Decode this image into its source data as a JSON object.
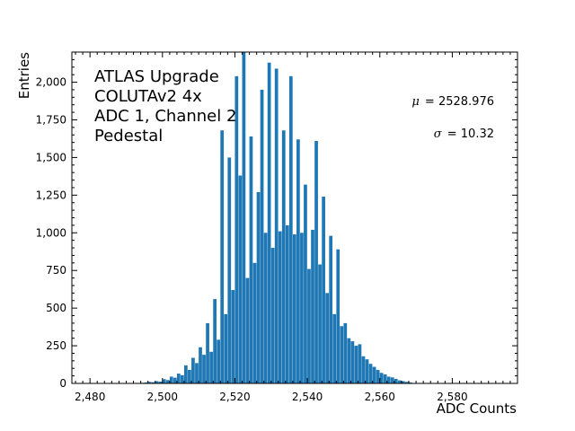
{
  "chart_data": {
    "type": "bar",
    "xlabel": "ADC Counts",
    "ylabel": "Entries",
    "xlim": [
      2475,
      2598
    ],
    "ylim": [
      0,
      2200
    ],
    "x_ticks": [
      2480,
      2500,
      2520,
      2540,
      2560,
      2580
    ],
    "x_tick_labels": [
      "2,480",
      "2,500",
      "2,520",
      "2,540",
      "2,560",
      "2,580"
    ],
    "y_ticks": [
      0,
      250,
      500,
      750,
      1000,
      1250,
      1500,
      1750,
      2000
    ],
    "y_tick_labels": [
      "0",
      "250",
      "500",
      "750",
      "1,000",
      "1,250",
      "1,500",
      "1,750",
      "2,000"
    ],
    "bar_color": "#1f77b4",
    "bins": [
      2490,
      2491,
      2492,
      2493,
      2494,
      2495,
      2496,
      2497,
      2498,
      2499,
      2500,
      2501,
      2502,
      2503,
      2504,
      2505,
      2506,
      2507,
      2508,
      2509,
      2510,
      2511,
      2512,
      2513,
      2514,
      2515,
      2516,
      2517,
      2518,
      2519,
      2520,
      2521,
      2522,
      2523,
      2524,
      2525,
      2526,
      2527,
      2528,
      2529,
      2530,
      2531,
      2532,
      2533,
      2534,
      2535,
      2536,
      2537,
      2538,
      2539,
      2540,
      2541,
      2542,
      2543,
      2544,
      2545,
      2546,
      2547,
      2548,
      2549,
      2550,
      2551,
      2552,
      2553,
      2554,
      2555,
      2556,
      2557,
      2558,
      2559,
      2560,
      2561,
      2562,
      2563,
      2564,
      2565,
      2566,
      2567,
      2568
    ],
    "values": [
      1,
      1,
      2,
      3,
      4,
      6,
      10,
      8,
      15,
      12,
      28,
      22,
      45,
      38,
      65,
      55,
      120,
      90,
      170,
      135,
      240,
      190,
      400,
      210,
      560,
      290,
      1680,
      460,
      1500,
      620,
      2040,
      1380,
      2200,
      700,
      1640,
      800,
      1270,
      1950,
      1000,
      2130,
      900,
      2090,
      1010,
      1680,
      1050,
      2040,
      990,
      1620,
      1000,
      1320,
      760,
      1020,
      1610,
      790,
      1240,
      600,
      980,
      460,
      890,
      380,
      400,
      300,
      280,
      250,
      260,
      180,
      160,
      130,
      110,
      90,
      70,
      60,
      45,
      40,
      30,
      20,
      15,
      10,
      6
    ],
    "annotation_lines": [
      "ATLAS Upgrade",
      "COLUTAv2 4x",
      "ADC 1, Channel 2",
      "Pedestal"
    ],
    "stats": {
      "mu_symbol": "μ",
      "mu_value": "2528.976",
      "sigma_symbol": "σ",
      "sigma_value": "10.32"
    }
  }
}
